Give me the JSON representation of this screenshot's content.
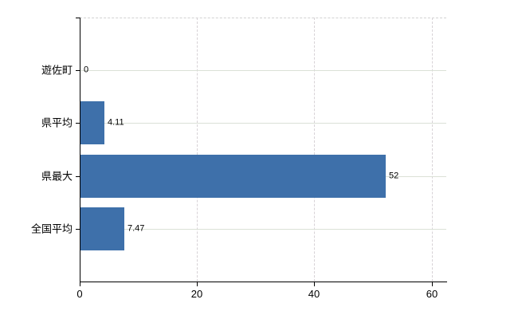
{
  "chart_data": {
    "type": "bar",
    "orientation": "horizontal",
    "title": "",
    "xlabel": "",
    "ylabel": "",
    "categories": [
      "遊佐町",
      "県平均",
      "県最大",
      "全国平均"
    ],
    "values": [
      0,
      4.11,
      52,
      7.47
    ],
    "value_labels": [
      "0",
      "4.11",
      "52",
      "7.47"
    ],
    "x_ticks": [
      0,
      20,
      40,
      60
    ],
    "x_tick_labels": [
      "0",
      "20",
      "40",
      "60"
    ],
    "xlim": [
      0,
      62.5
    ],
    "grid": true,
    "legend": false,
    "bar_color": "#3e70aa",
    "grid_color_horizontal": "#dbe1d7",
    "grid_color_vertical": "#d7d2d6",
    "axis_color": "#000000",
    "text_color": "#000000",
    "background_color": "#ffffff"
  }
}
